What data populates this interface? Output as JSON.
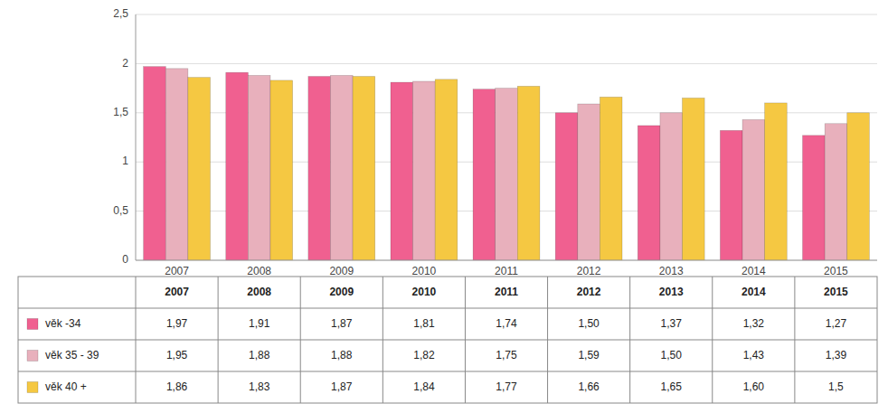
{
  "chart_data": {
    "type": "bar",
    "categories": [
      "2007",
      "2008",
      "2009",
      "2010",
      "2011",
      "2012",
      "2013",
      "2014",
      "2015"
    ],
    "series": [
      {
        "name": "věk -34",
        "color": "#F06090",
        "values": [
          1.97,
          1.91,
          1.87,
          1.81,
          1.74,
          1.5,
          1.37,
          1.32,
          1.27
        ],
        "value_labels": [
          "1,97",
          "1,91",
          "1,87",
          "1,81",
          "1,74",
          "1,50",
          "1,37",
          "1,32",
          "1,27"
        ]
      },
      {
        "name": "věk 35 - 39",
        "color": "#E8B0BC",
        "values": [
          1.95,
          1.88,
          1.88,
          1.82,
          1.75,
          1.59,
          1.5,
          1.43,
          1.39
        ],
        "value_labels": [
          "1,95",
          "1,88",
          "1,88",
          "1,82",
          "1,75",
          "1,59",
          "1,50",
          "1,43",
          "1,39"
        ]
      },
      {
        "name": "věk 40 +",
        "color": "#F5C842",
        "values": [
          1.86,
          1.83,
          1.87,
          1.84,
          1.77,
          1.66,
          1.65,
          1.6,
          1.5
        ],
        "value_labels": [
          "1,86",
          "1,83",
          "1,87",
          "1,84",
          "1,77",
          "1,66",
          "1,65",
          "1,60",
          "1,5"
        ]
      }
    ],
    "ylim": [
      0,
      2.5
    ],
    "yticks": [
      0,
      {
        "value": 0.5,
        "label": "0,5"
      },
      1,
      {
        "value": 1.5,
        "label": "1,5"
      },
      2,
      {
        "value": 2.5,
        "label": "2,5"
      }
    ],
    "grid": true
  }
}
